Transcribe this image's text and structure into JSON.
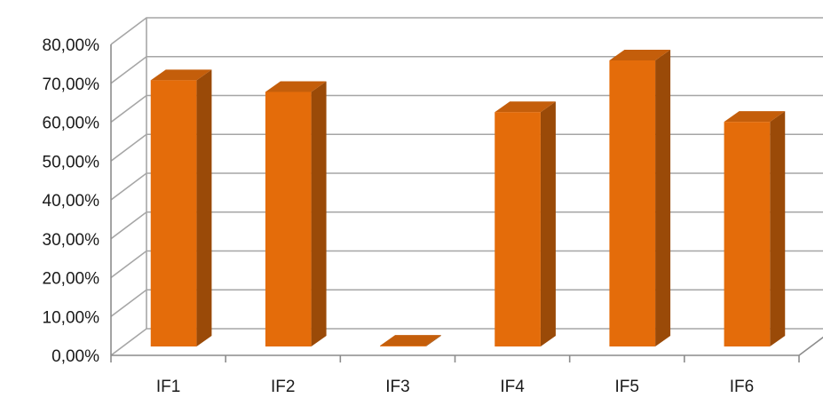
{
  "chart_data": {
    "type": "bar",
    "style": "3d-column",
    "categories": [
      "IF1",
      "IF2",
      "IF3",
      "IF4",
      "IF5",
      "IF6"
    ],
    "values": [
      68.5,
      65.5,
      0.2,
      60.3,
      73.6,
      57.8
    ],
    "value_unit": "%",
    "ylim": [
      0,
      80
    ],
    "yticks": [
      "0,00%",
      "10,00%",
      "20,00%",
      "30,00%",
      "40,00%",
      "50,00%",
      "60,00%",
      "70,00%",
      "80,00%"
    ],
    "grid": true,
    "legend": "none",
    "colors": {
      "bar_front": "#E46C0A",
      "bar_side": "#9A4A08",
      "bar_top": "#C45E0B",
      "grid": "#A6A6A6",
      "axis": "#8C8C8C",
      "text": "#1A1A1A"
    }
  }
}
